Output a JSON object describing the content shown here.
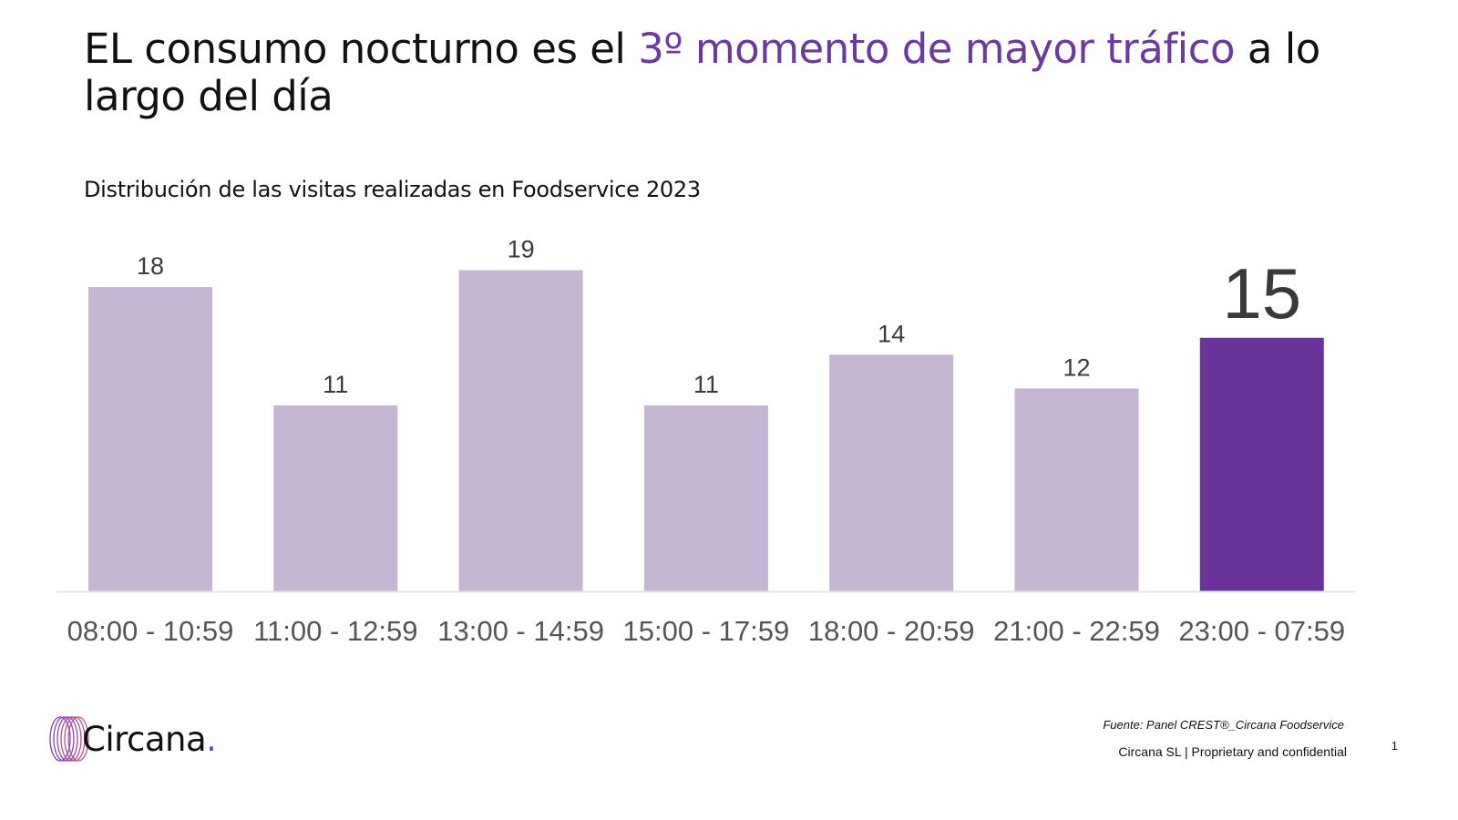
{
  "slide": {
    "title_part1": "EL consumo nocturno es el ",
    "title_highlight": "3º momento de mayor tráfico",
    "title_part2": " a lo largo del día",
    "subtitle": "Distribución de las visitas realizadas en Foodservice 2023",
    "accent_color": "#6b3a9c"
  },
  "chart_data": {
    "type": "bar",
    "title": "Distribución de las visitas realizadas en Foodservice 2023",
    "xlabel": "",
    "ylabel": "",
    "categories": [
      "08:00 - 10:59",
      "11:00 - 12:59",
      "13:00 - 14:59",
      "15:00 - 17:59",
      "18:00 - 20:59",
      "21:00 - 22:59",
      "23:00 - 07:59"
    ],
    "values": [
      18,
      11,
      19,
      11,
      14,
      12,
      15
    ],
    "data_labels": [
      "18",
      "11",
      "19",
      "11",
      "14",
      "12",
      "15"
    ],
    "highlight_index": 6,
    "colors": {
      "default": "#c5b6d3",
      "highlight": "#6a3399",
      "axis": "#e6e6e6"
    },
    "ylim": [
      0,
      20
    ],
    "grid": false,
    "legend": "none"
  },
  "footer": {
    "logo_text": "Circana",
    "logo_dot": ".",
    "source": "Fuente: Panel CREST®_Circana Foodservice",
    "confidential": "Circana SL |  Proprietary and confidential",
    "page_number": "1"
  }
}
